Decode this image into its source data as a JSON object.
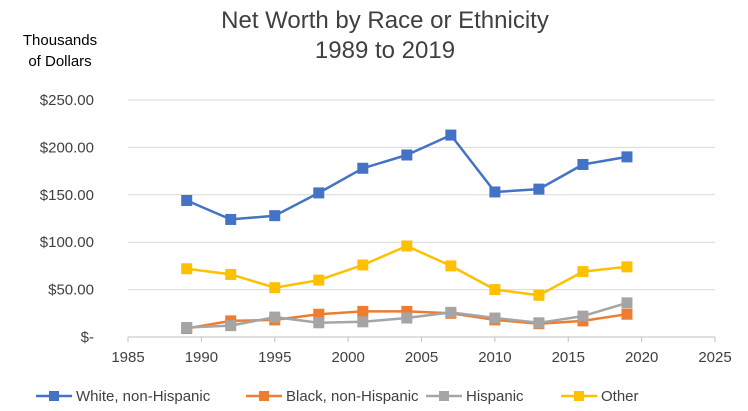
{
  "chart_data": {
    "type": "line",
    "title_line1": "Net Worth by Race or Ethnicity",
    "title_line2": "1989 to 2019",
    "ylabel_line1": "Thousands",
    "ylabel_line2": "of Dollars",
    "xlim": [
      1985,
      2025
    ],
    "ylim": [
      0,
      250
    ],
    "x_ticks": [
      1985,
      1990,
      1995,
      2000,
      2005,
      2010,
      2015,
      2020,
      2025
    ],
    "x_tick_labels": [
      "1985",
      "1990",
      "1995",
      "2000",
      "2005",
      "2010",
      "2015",
      "2020",
      "2025"
    ],
    "y_ticks": [
      0,
      50,
      100,
      150,
      200,
      250
    ],
    "y_tick_labels": [
      "$-",
      "$50.00",
      "$100.00",
      "$150.00",
      "$200.00",
      "$250.00"
    ],
    "grid": "horizontal",
    "legend_position": "bottom",
    "x": [
      1989,
      1992,
      1995,
      1998,
      2001,
      2004,
      2007,
      2010,
      2013,
      2016,
      2019
    ],
    "series": [
      {
        "name": "White, non-Hispanic",
        "color": "#4472C4",
        "values": [
          144,
          124,
          128,
          152,
          178,
          192,
          213,
          153,
          156,
          182,
          190
        ]
      },
      {
        "name": "Black, non-Hispanic",
        "color": "#ED7D31",
        "values": [
          9,
          17,
          18,
          24,
          27,
          27,
          25,
          18,
          14,
          17,
          24
        ]
      },
      {
        "name": "Hispanic",
        "color": "#A5A5A5",
        "values": [
          10,
          12,
          21,
          15,
          16,
          20,
          26,
          20,
          15,
          22,
          36
        ]
      },
      {
        "name": "Other",
        "color": "#FFC000",
        "values": [
          72,
          66,
          52,
          60,
          76,
          96,
          75,
          50,
          44,
          69,
          74
        ]
      }
    ]
  }
}
